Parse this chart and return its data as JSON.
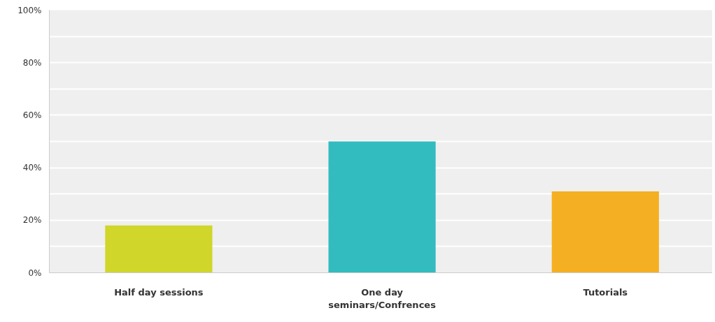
{
  "chart_data": {
    "type": "bar",
    "categories": [
      "Half day sessions",
      "One day seminars/Confrences",
      "Tutorials"
    ],
    "values": [
      18,
      50,
      31
    ],
    "colors": [
      "#d0d62a",
      "#33bcbf",
      "#f5af22"
    ],
    "ylim": [
      0,
      100
    ],
    "yticks": [
      {
        "value": 0,
        "label": "0%"
      },
      {
        "value": 10,
        "label": null
      },
      {
        "value": 20,
        "label": "20%"
      },
      {
        "value": 30,
        "label": null
      },
      {
        "value": 40,
        "label": "40%"
      },
      {
        "value": 50,
        "label": null
      },
      {
        "value": 60,
        "label": "60%"
      },
      {
        "value": 70,
        "label": null
      },
      {
        "value": 80,
        "label": "80%"
      },
      {
        "value": 90,
        "label": null
      },
      {
        "value": 100,
        "label": "100%"
      }
    ],
    "grid": "y"
  }
}
